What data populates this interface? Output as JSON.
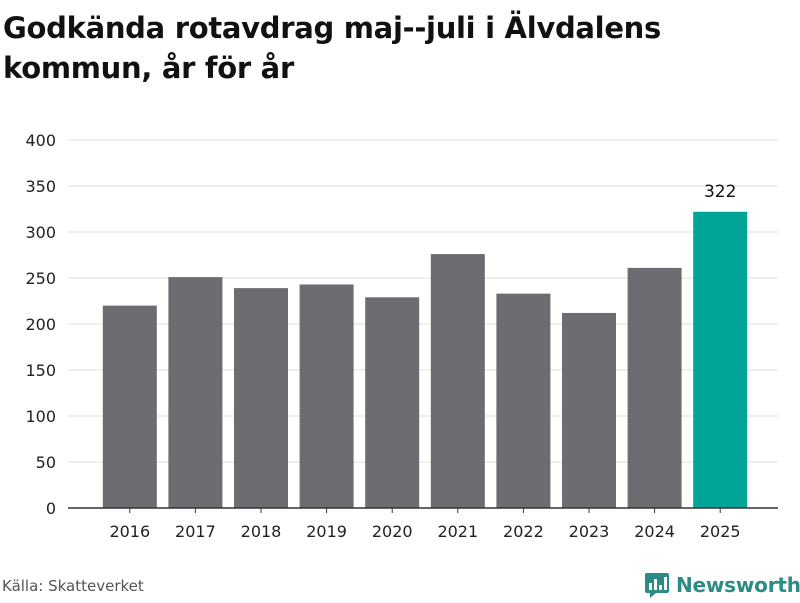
{
  "page": {
    "title": "Godkända rotavdrag maj--juli i Älvdalens kommun, år för år",
    "source": "Källa: Skatteverket",
    "brand": "Newsworthy",
    "brand_icon": "newsworthy-logo-icon"
  },
  "colors": {
    "bar": "#6d6c71",
    "highlight": "#00a598",
    "grid": "#dcdcdc",
    "axis": "#333333",
    "brand": "#2b8c86"
  },
  "chart_data": {
    "type": "bar",
    "title": "Godkända rotavdrag maj--juli i Älvdalens kommun, år för år",
    "xlabel": "",
    "ylabel": "",
    "categories": [
      "2016",
      "2017",
      "2018",
      "2019",
      "2020",
      "2021",
      "2022",
      "2023",
      "2024",
      "2025"
    ],
    "values": [
      220,
      251,
      239,
      243,
      229,
      276,
      233,
      212,
      261,
      322
    ],
    "highlight_index": 9,
    "data_labels": [
      {
        "index": 9,
        "text": "322"
      }
    ],
    "ylim": [
      0,
      400
    ],
    "yticks": [
      0,
      50,
      100,
      150,
      200,
      250,
      300,
      350,
      400
    ],
    "grid": true,
    "legend": "none"
  }
}
